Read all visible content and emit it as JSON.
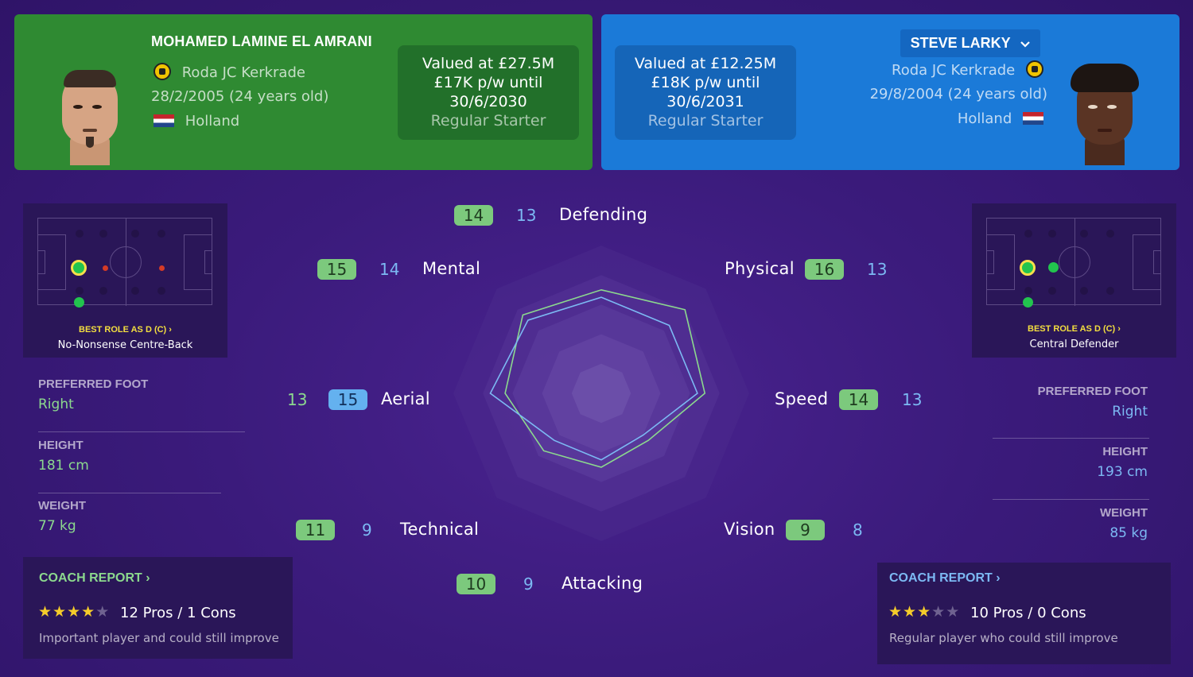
{
  "left_player": {
    "name": "MOHAMED LAMINE EL AMRANI",
    "club": "Roda JC Kerkrade",
    "dob": "28/2/2005 (24 years old)",
    "nationality": "Holland",
    "value": "Valued at £27.5M",
    "wage": "£17K p/w until",
    "contract_end": "30/6/2030",
    "status": "Regular Starter",
    "best_role_label": "BEST ROLE AS D (C)",
    "best_role_name": "No-Nonsense Centre-Back",
    "preferred_foot_label": "PREFERRED FOOT",
    "preferred_foot": "Right",
    "height_label": "HEIGHT",
    "height": "181 cm",
    "weight_label": "WEIGHT",
    "weight": "77 kg",
    "coach_report_label": "COACH REPORT",
    "stars": 4,
    "pros_cons": "12 Pros / 1 Cons",
    "coach_summary": "Important player and could still improve",
    "color": "#2f8a32"
  },
  "right_player": {
    "name": "STEVE LARKY",
    "club": "Roda JC Kerkrade",
    "dob": "29/8/2004 (24 years old)",
    "nationality": "Holland",
    "value": "Valued at £12.25M",
    "wage": "£18K p/w until",
    "contract_end": "30/6/2031",
    "status": "Regular Starter",
    "best_role_label": "BEST ROLE AS D (C)",
    "best_role_name": "Central Defender",
    "preferred_foot_label": "PREFERRED FOOT",
    "preferred_foot": "Right",
    "height_label": "HEIGHT",
    "height": "193 cm",
    "weight_label": "WEIGHT",
    "weight": "85 kg",
    "coach_report_label": "COACH REPORT",
    "stars": 3,
    "pros_cons": "10 Pros / 0 Cons",
    "coach_summary": "Regular player who could still improve",
    "color": "#1b7ad8"
  },
  "icons": {
    "club": "club-crest-icon",
    "flag": "netherlands-flag-icon",
    "dropdown": "chevron-down-icon",
    "link": "chevron-right-icon",
    "star": "star-icon"
  },
  "chart_data": {
    "type": "radar",
    "categories": [
      "Defending",
      "Physical",
      "Speed",
      "Vision",
      "Attacking",
      "Technical",
      "Aerial",
      "Mental"
    ],
    "series": [
      {
        "name": "MOHAMED LAMINE EL AMRANI",
        "color": "#8cd98e",
        "values": [
          14,
          16,
          14,
          9,
          10,
          11,
          13,
          15
        ]
      },
      {
        "name": "STEVE LARKY",
        "color": "#7cb9f3",
        "values": [
          13,
          13,
          13,
          8,
          9,
          9,
          15,
          14
        ]
      }
    ],
    "ylim": [
      0,
      20
    ]
  }
}
